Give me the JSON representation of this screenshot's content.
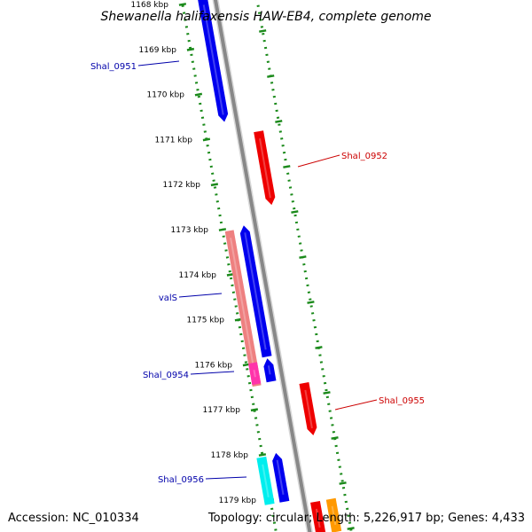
{
  "title": "Shewanella halifaxensis HAW-EB4, complete genome",
  "accession": "Accession: NC_010334",
  "topology": "Topology: circular; Length: 5,226,917 bp; Genes: 4,433",
  "ticks": [
    "1168 kbp",
    "1169 kbp",
    "1170 kbp",
    "1171 kbp",
    "1172 kbp",
    "1173 kbp",
    "1174 kbp",
    "1175 kbp",
    "1176 kbp",
    "1177 kbp",
    "1178 kbp",
    "1179 kbp"
  ],
  "gene_labels": {
    "shal_0951": "Shal_0951",
    "shal_0952": "Shal_0952",
    "vals": "valS",
    "shal_0954": "Shal_0954",
    "shal_0955": "Shal_0955",
    "shal_0956": "Shal_0956"
  },
  "colors": {
    "cds_blue": "#0000ee",
    "cds_red": "#ee0000",
    "cds_salmon": "#ee8080",
    "cds_magenta": "#ff33aa",
    "cds_cyan": "#00eeee",
    "cds_orange": "#ff9900",
    "backbone": "#888888",
    "tick_green": "#1b8a1b",
    "label_blue": "#0000aa",
    "label_red": "#cc0000"
  }
}
